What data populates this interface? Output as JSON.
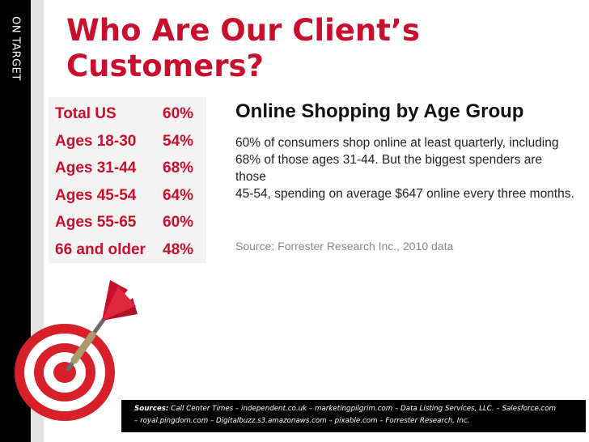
{
  "sidebar": {
    "label": "ON TARGET"
  },
  "slide": {
    "title_line1": "Who Are Our Client’s",
    "title_line2": "Customers?"
  },
  "stats": [
    {
      "label": "Total US",
      "value": "60%"
    },
    {
      "label": "Ages 18-30",
      "value": "54%"
    },
    {
      "label": "Ages 31-44",
      "value": "68%"
    },
    {
      "label": "Ages 45-54",
      "value": "64%"
    },
    {
      "label": "Ages 55-65",
      "value": "60%"
    },
    {
      "label": "66 and older",
      "value": "48%"
    }
  ],
  "article": {
    "title": "Online Shopping by Age Group",
    "body_line1": "60% of consumers shop online at least quarterly, including",
    "body_line2": "68% of those ages 31-44. But the biggest spenders are those",
    "body_line3": "45-54, spending on average $647 online every three months.",
    "source": "Source: Forrester Research Inc., 2010 data"
  },
  "sources": {
    "heading": "Sources:",
    "line1": "Call Center Times – independent.co.uk – marketingpilgrim.com – Data Listing Services, LLC. – Salesforce.com",
    "line2": "– royal.pingdom.com – Digitalbuzz.s3.amazonaws.com – pixable.com – Forrester Research, Inc."
  },
  "colors": {
    "accent": "#c8102e",
    "sidebar": "#000000"
  },
  "icons": {
    "target": "target-with-dart-icon"
  }
}
